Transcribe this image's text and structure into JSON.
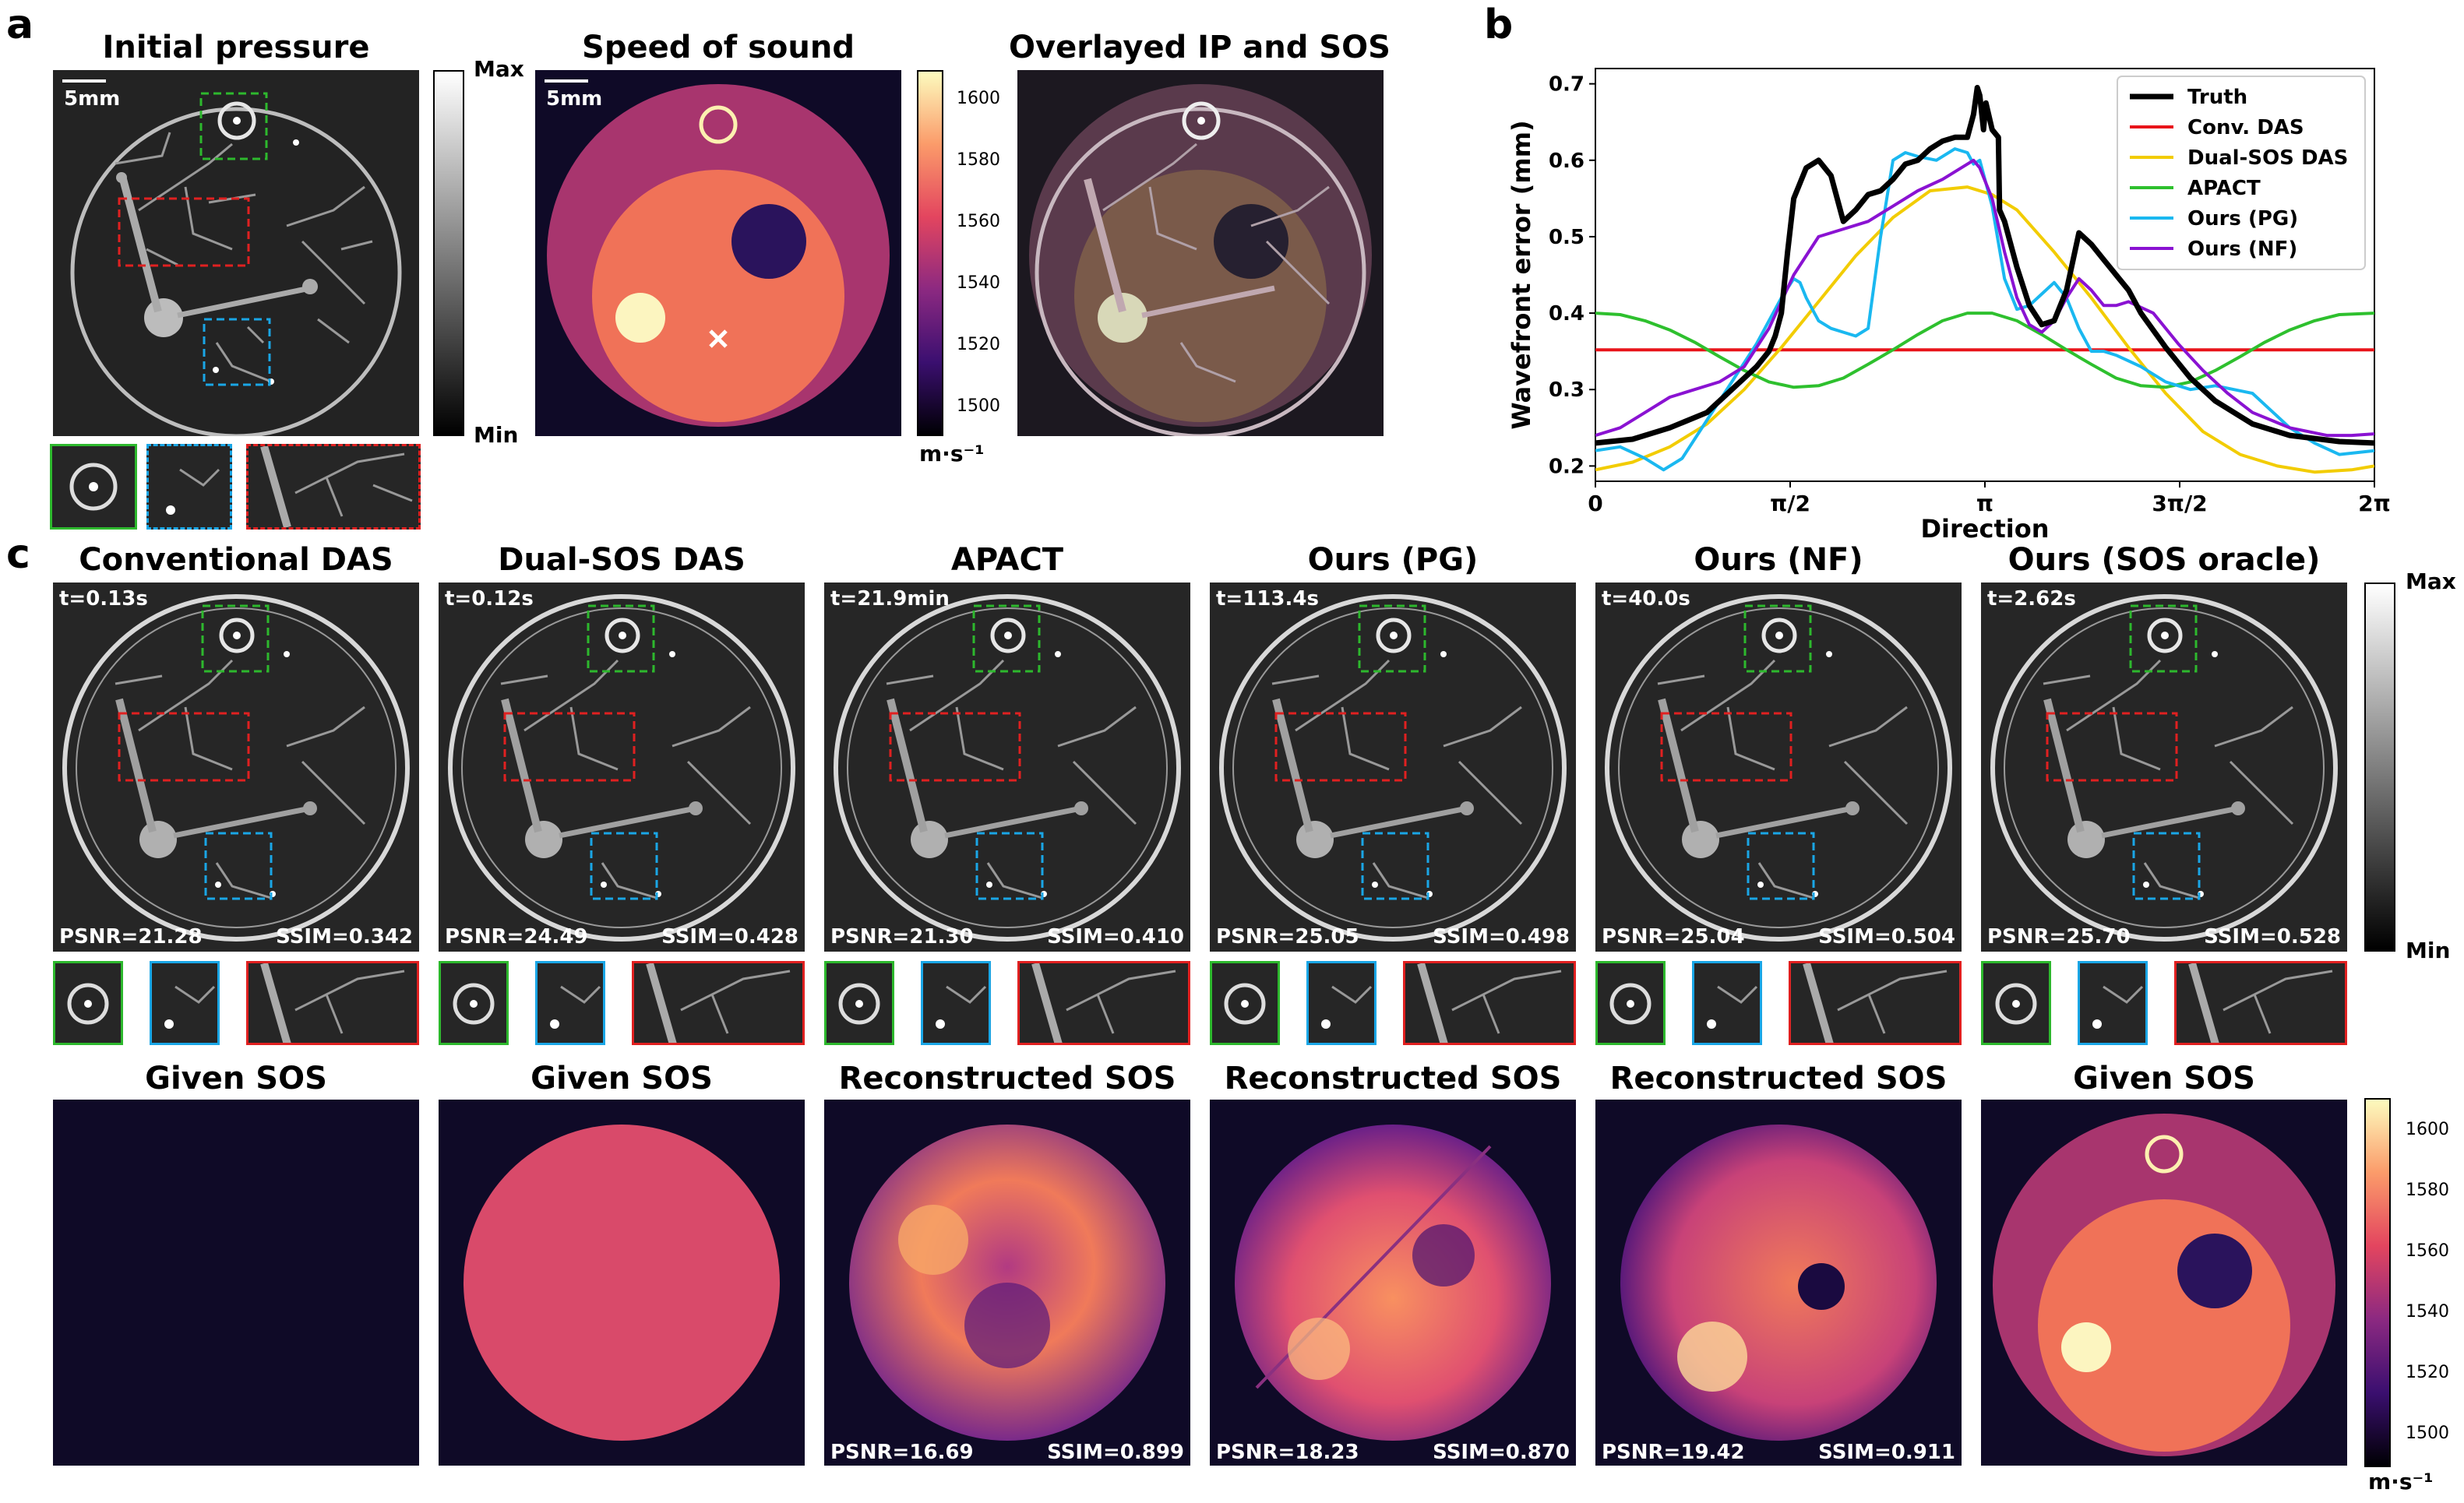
{
  "panel_letters": {
    "a": "a",
    "b": "b",
    "c": "c"
  },
  "panel_a": {
    "titles": [
      "Initial pressure",
      "Speed of sound",
      "Overlayed IP and SOS"
    ],
    "scale_bar": "5mm",
    "ip_colorbar": {
      "max": "Max",
      "min": "Min"
    },
    "sos_colorbar": {
      "ticks": [
        "1600",
        "1580",
        "1560",
        "1540",
        "1520",
        "1500"
      ],
      "unit": "m·s⁻¹"
    }
  },
  "panel_c": {
    "titles": [
      "Conventional DAS",
      "Dual-SOS DAS",
      "APACT",
      "Ours (PG)",
      "Ours (NF)",
      "Ours (SOS oracle)"
    ],
    "times": [
      "t=0.13s",
      "t=0.12s",
      "t=21.9min",
      "t=113.4s",
      "t=40.0s",
      "t=2.62s"
    ],
    "psnr": [
      "PSNR=21.28",
      "PSNR=24.49",
      "PSNR=21.30",
      "PSNR=25.05",
      "PSNR=25.04",
      "PSNR=25.70"
    ],
    "ssim": [
      "SSIM=0.342",
      "SSIM=0.428",
      "SSIM=0.410",
      "SSIM=0.498",
      "SSIM=0.504",
      "SSIM=0.528"
    ],
    "ip_colorbar": {
      "max": "Max",
      "min": "Min"
    },
    "sos_titles": [
      "Given SOS",
      "Given SOS",
      "Reconstructed SOS",
      "Reconstructed SOS",
      "Reconstructed SOS",
      "Given SOS"
    ],
    "sos_psnr": [
      "",
      "",
      "PSNR=16.69",
      "PSNR=18.23",
      "PSNR=19.42",
      ""
    ],
    "sos_ssim": [
      "",
      "",
      "SSIM=0.899",
      "SSIM=0.870",
      "SSIM=0.911",
      ""
    ],
    "sos_colorbar": {
      "ticks": [
        "1600",
        "1580",
        "1560",
        "1540",
        "1520",
        "1500"
      ],
      "unit": "m·s⁻¹"
    }
  },
  "colors": {
    "green_box": "#2db82d",
    "red_box": "#e02020",
    "blue_box": "#1aa6e6"
  },
  "chart_data": {
    "type": "line",
    "title": "",
    "xlabel": "Direction",
    "ylabel": "Wavefront error (mm)",
    "xlim": [
      0,
      6.2832
    ],
    "ylim": [
      0.18,
      0.72
    ],
    "x_ticks": [
      {
        "v": 0,
        "label": "0"
      },
      {
        "v": 1.5708,
        "label": "π/2"
      },
      {
        "v": 3.1416,
        "label": "π"
      },
      {
        "v": 4.7124,
        "label": "3π/2"
      },
      {
        "v": 6.2832,
        "label": "2π"
      }
    ],
    "y_ticks": [
      {
        "v": 0.2,
        "label": "0.2"
      },
      {
        "v": 0.3,
        "label": "0.3"
      },
      {
        "v": 0.4,
        "label": "0.4"
      },
      {
        "v": 0.5,
        "label": "0.5"
      },
      {
        "v": 0.6,
        "label": "0.6"
      },
      {
        "v": 0.7,
        "label": "0.7"
      }
    ],
    "legend_position": "top-right",
    "series": [
      {
        "name": "Truth",
        "color": "#000000",
        "width": 7,
        "x": [
          0,
          0.3,
          0.6,
          0.9,
          1.1,
          1.3,
          1.4,
          1.45,
          1.5,
          1.55,
          1.6,
          1.7,
          1.8,
          1.9,
          2.0,
          2.1,
          2.2,
          2.3,
          2.4,
          2.5,
          2.6,
          2.7,
          2.8,
          2.9,
          3.0,
          3.05,
          3.08,
          3.1,
          3.13,
          3.15,
          3.2,
          3.25,
          3.26,
          3.3,
          3.4,
          3.5,
          3.6,
          3.7,
          3.8,
          3.9,
          4.0,
          4.1,
          4.2,
          4.3,
          4.4,
          4.6,
          4.8,
          5.0,
          5.3,
          5.6,
          6.0,
          6.2832
        ],
        "y": [
          0.23,
          0.235,
          0.25,
          0.27,
          0.3,
          0.33,
          0.35,
          0.37,
          0.4,
          0.48,
          0.55,
          0.59,
          0.6,
          0.58,
          0.52,
          0.535,
          0.555,
          0.56,
          0.575,
          0.595,
          0.6,
          0.615,
          0.625,
          0.63,
          0.63,
          0.66,
          0.695,
          0.685,
          0.64,
          0.675,
          0.64,
          0.63,
          0.535,
          0.52,
          0.46,
          0.41,
          0.385,
          0.39,
          0.43,
          0.505,
          0.49,
          0.47,
          0.45,
          0.43,
          0.4,
          0.355,
          0.315,
          0.285,
          0.255,
          0.24,
          0.232,
          0.23
        ]
      },
      {
        "name": "Conv. DAS",
        "color": "#e8141a",
        "width": 4,
        "x": [
          0,
          6.2832
        ],
        "y": [
          0.352,
          0.352
        ]
      },
      {
        "name": "Dual-SOS DAS",
        "color": "#f2cc00",
        "width": 4,
        "x": [
          0,
          0.3,
          0.6,
          0.9,
          1.2,
          1.5,
          1.8,
          2.1,
          2.4,
          2.7,
          3.0,
          3.2,
          3.4,
          3.7,
          4.0,
          4.3,
          4.6,
          4.9,
          5.2,
          5.5,
          5.8,
          6.1,
          6.2832
        ],
        "y": [
          0.195,
          0.205,
          0.225,
          0.255,
          0.3,
          0.355,
          0.415,
          0.475,
          0.525,
          0.56,
          0.565,
          0.555,
          0.535,
          0.48,
          0.42,
          0.355,
          0.295,
          0.245,
          0.215,
          0.2,
          0.192,
          0.195,
          0.2
        ]
      },
      {
        "name": "APACT",
        "color": "#2ec02e",
        "width": 4,
        "x": [
          0,
          0.2,
          0.4,
          0.6,
          0.8,
          1.0,
          1.2,
          1.4,
          1.6,
          1.8,
          2.0,
          2.2,
          2.4,
          2.6,
          2.8,
          3.0,
          3.2,
          3.4,
          3.6,
          3.8,
          4.0,
          4.2,
          4.4,
          4.6,
          4.8,
          5.0,
          5.2,
          5.4,
          5.6,
          5.8,
          6.0,
          6.2832
        ],
        "y": [
          0.4,
          0.398,
          0.39,
          0.378,
          0.362,
          0.343,
          0.325,
          0.31,
          0.303,
          0.305,
          0.315,
          0.333,
          0.352,
          0.372,
          0.39,
          0.4,
          0.4,
          0.39,
          0.372,
          0.352,
          0.333,
          0.315,
          0.305,
          0.303,
          0.31,
          0.325,
          0.343,
          0.362,
          0.378,
          0.39,
          0.398,
          0.4
        ]
      },
      {
        "name": "Ours (PG)",
        "color": "#1ab8f0",
        "width": 4,
        "x": [
          0,
          0.2,
          0.4,
          0.55,
          0.7,
          0.9,
          1.1,
          1.3,
          1.5,
          1.6,
          1.65,
          1.7,
          1.8,
          1.9,
          2.0,
          2.1,
          2.2,
          2.3,
          2.4,
          2.5,
          2.6,
          2.75,
          2.9,
          3.0,
          3.05,
          3.1,
          3.2,
          3.3,
          3.4,
          3.5,
          3.6,
          3.7,
          3.8,
          3.9,
          4.0,
          4.1,
          4.2,
          4.4,
          4.6,
          4.8,
          5.0,
          5.3,
          5.6,
          5.8,
          6.0,
          6.2832
        ],
        "y": [
          0.22,
          0.225,
          0.21,
          0.195,
          0.21,
          0.26,
          0.31,
          0.36,
          0.42,
          0.445,
          0.44,
          0.42,
          0.39,
          0.38,
          0.375,
          0.37,
          0.38,
          0.5,
          0.6,
          0.61,
          0.605,
          0.6,
          0.615,
          0.61,
          0.595,
          0.6,
          0.54,
          0.445,
          0.405,
          0.41,
          0.425,
          0.44,
          0.42,
          0.38,
          0.35,
          0.35,
          0.345,
          0.33,
          0.31,
          0.3,
          0.305,
          0.295,
          0.25,
          0.23,
          0.215,
          0.22
        ]
      },
      {
        "name": "Ours (NF)",
        "color": "#8a12d2",
        "width": 4,
        "x": [
          0,
          0.2,
          0.4,
          0.6,
          0.8,
          1.0,
          1.2,
          1.4,
          1.6,
          1.8,
          2.0,
          2.2,
          2.4,
          2.6,
          2.8,
          3.0,
          3.05,
          3.1,
          3.2,
          3.3,
          3.4,
          3.5,
          3.6,
          3.7,
          3.8,
          3.9,
          4.0,
          4.1,
          4.2,
          4.3,
          4.5,
          4.7,
          4.9,
          5.1,
          5.3,
          5.6,
          5.9,
          6.1,
          6.2832
        ],
        "y": [
          0.24,
          0.25,
          0.27,
          0.29,
          0.3,
          0.31,
          0.33,
          0.38,
          0.45,
          0.5,
          0.51,
          0.52,
          0.54,
          0.56,
          0.575,
          0.595,
          0.6,
          0.59,
          0.55,
          0.48,
          0.42,
          0.385,
          0.375,
          0.39,
          0.42,
          0.445,
          0.43,
          0.41,
          0.41,
          0.415,
          0.4,
          0.36,
          0.325,
          0.295,
          0.27,
          0.25,
          0.24,
          0.24,
          0.242
        ]
      }
    ]
  }
}
